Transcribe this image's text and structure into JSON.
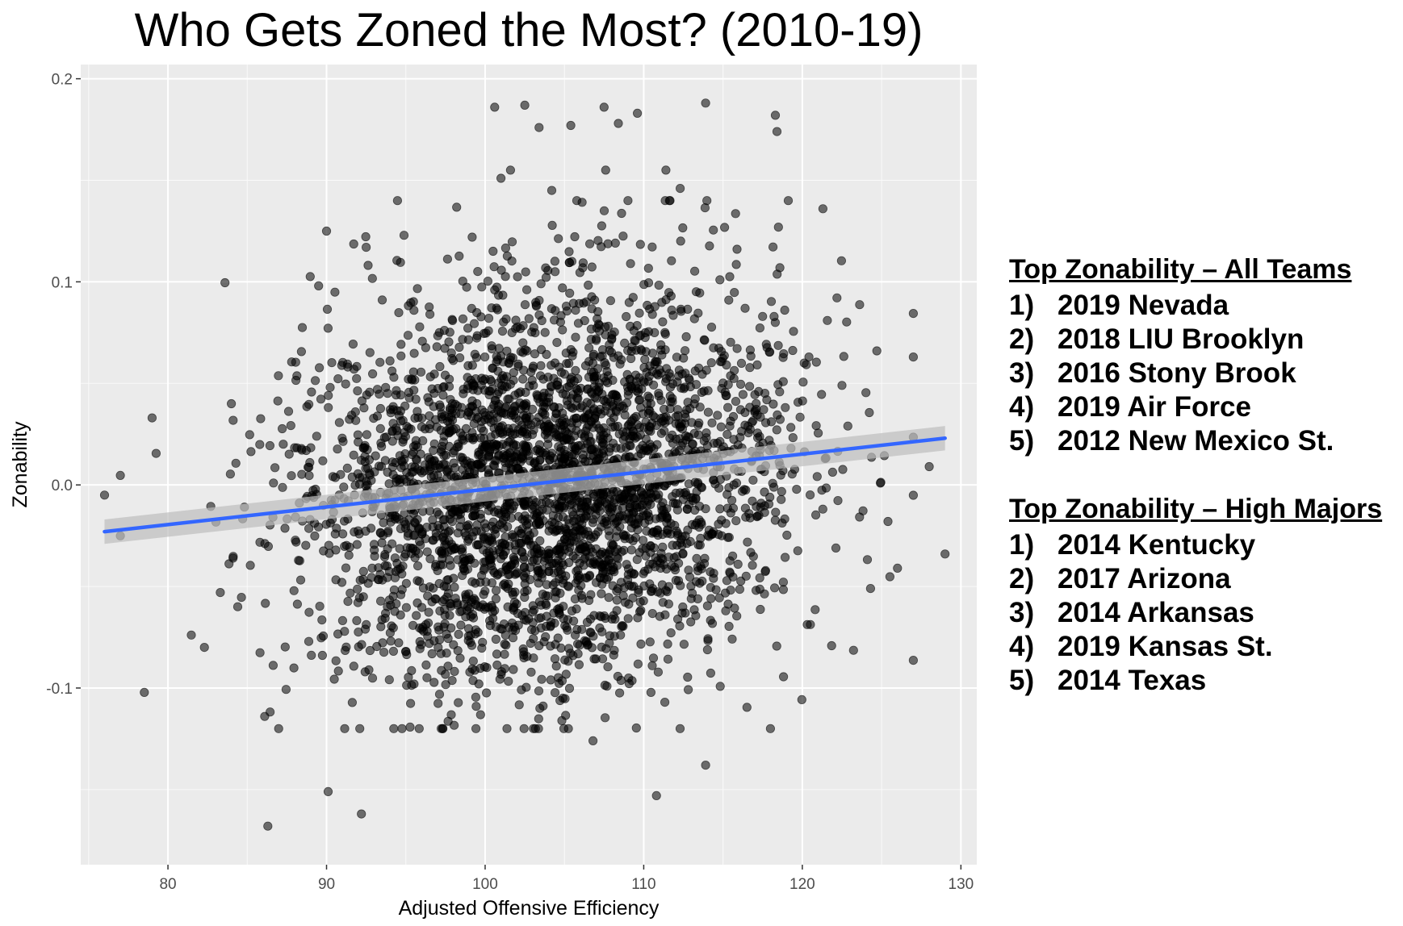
{
  "chart_data": {
    "type": "scatter",
    "title": "Who Gets Zoned the Most? (2010-19)",
    "xlabel": "Adjusted Offensive Efficiency",
    "ylabel": "Zonability",
    "xlim": [
      74.5,
      131.0
    ],
    "ylim": [
      -0.187,
      0.207
    ],
    "x_ticks": [
      80,
      90,
      100,
      110,
      120,
      130
    ],
    "x_tick_labels": [
      "80",
      "90",
      "100",
      "110",
      "120",
      "130"
    ],
    "y_ticks": [
      -0.1,
      0.0,
      0.1,
      0.2
    ],
    "y_tick_labels": [
      "-0.1",
      "0.0",
      "0.1",
      "0.2"
    ],
    "grid": true,
    "panel_color": "#ebebeb",
    "point_color": "#000000",
    "point_opacity": 0.55,
    "trend_line": {
      "type": "linear fit with confidence band",
      "x": [
        76,
        129
      ],
      "y": [
        -0.023,
        0.023
      ],
      "band_lower": [
        -0.029,
        0.017
      ],
      "band_upper": [
        -0.017,
        0.029
      ],
      "color": "#3366ff",
      "band_color": "#bdbdbd"
    },
    "highlighted_points": [
      [
        76.0,
        -0.005
      ],
      [
        79.0,
        0.033
      ],
      [
        82.3,
        -0.08
      ],
      [
        86.1,
        -0.114
      ],
      [
        86.3,
        -0.168
      ],
      [
        90.1,
        -0.151
      ],
      [
        92.2,
        -0.162
      ],
      [
        90.0,
        0.125
      ],
      [
        89.5,
        0.098
      ],
      [
        84.0,
        0.04
      ],
      [
        100.6,
        0.186
      ],
      [
        102.5,
        0.187
      ],
      [
        107.5,
        0.186
      ],
      [
        113.9,
        0.188
      ],
      [
        118.3,
        0.182
      ],
      [
        118.4,
        0.174
      ],
      [
        103.4,
        0.176
      ],
      [
        105.4,
        0.177
      ],
      [
        108.4,
        0.178
      ],
      [
        109.6,
        0.183
      ],
      [
        121.3,
        0.136
      ],
      [
        110.8,
        -0.153
      ],
      [
        113.9,
        -0.138
      ],
      [
        106.8,
        -0.126
      ],
      [
        129.0,
        -0.034
      ],
      [
        126.0,
        -0.041
      ],
      [
        128.0,
        0.009
      ],
      [
        124.7,
        0.066
      ],
      [
        101.6,
        0.155
      ],
      [
        101.0,
        0.151
      ],
      [
        111.4,
        0.155
      ],
      [
        107.6,
        0.155
      ],
      [
        104.2,
        0.145
      ],
      [
        112.3,
        0.146
      ],
      [
        124.3,
        -0.051
      ],
      [
        125.4,
        -0.018
      ],
      [
        92.5,
        0.117
      ],
      [
        83.3,
        -0.053
      ],
      [
        84.4,
        -0.06
      ],
      [
        122.5,
        0.049
      ]
    ],
    "n_points_approx": 3500,
    "point_cloud": {
      "x_mean": 104,
      "x_sd": 7.5,
      "y_mean": 0.0,
      "y_sd": 0.047
    }
  },
  "side_panel": {
    "all_teams": {
      "heading": "Top Zonability – All Teams",
      "items": [
        {
          "num": "1)",
          "label": "2019 Nevada"
        },
        {
          "num": "2)",
          "label": "2018 LIU Brooklyn"
        },
        {
          "num": "3)",
          "label": "2016 Stony Brook"
        },
        {
          "num": "4)",
          "label": "2019 Air Force"
        },
        {
          "num": "5)",
          "label": "2012 New Mexico St."
        }
      ]
    },
    "high_majors": {
      "heading": "Top Zonability – High Majors",
      "items": [
        {
          "num": "1)",
          "label": "2014 Kentucky"
        },
        {
          "num": "2)",
          "label": "2017 Arizona"
        },
        {
          "num": "3)",
          "label": "2014 Arkansas"
        },
        {
          "num": "4)",
          "label": "2019 Kansas St."
        },
        {
          "num": "5)",
          "label": "2014 Texas"
        }
      ]
    }
  }
}
